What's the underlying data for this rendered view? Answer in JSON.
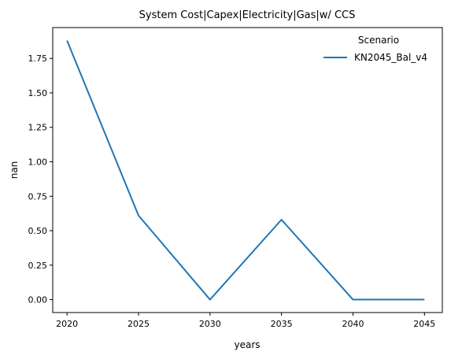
{
  "chart_data": {
    "type": "line",
    "title": "System Cost|Capex|Electricity|Gas|w/ CCS",
    "xlabel": "years",
    "ylabel": "nan",
    "x": [
      2020,
      2025,
      2030,
      2035,
      2040,
      2045
    ],
    "series": [
      {
        "name": "KN2045_Bal_v4",
        "values": [
          1.88,
          0.61,
          0.0,
          0.58,
          0.0,
          0.0
        ],
        "color": "#1f77b4"
      }
    ],
    "x_ticks": [
      "2020",
      "2025",
      "2030",
      "2035",
      "2040",
      "2045"
    ],
    "y_ticks": [
      "0.00",
      "0.25",
      "0.50",
      "0.75",
      "1.00",
      "1.25",
      "1.50",
      "1.75"
    ],
    "ylim": [
      -0.094,
      1.974
    ],
    "xlim": [
      2019.0,
      2046.25
    ],
    "legend": {
      "title": "Scenario",
      "placement": "top-right"
    },
    "grid": false
  }
}
